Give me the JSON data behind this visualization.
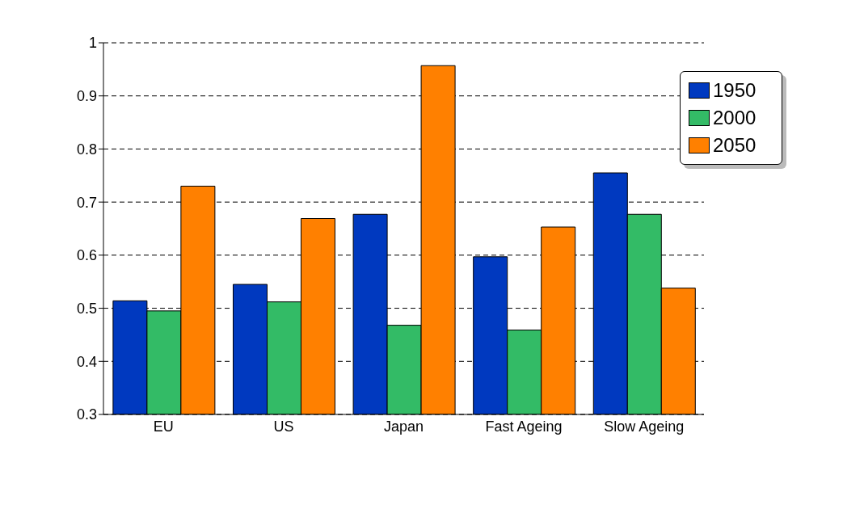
{
  "chart_data": {
    "type": "bar",
    "categories": [
      "EU",
      "US",
      "Japan",
      "Fast Ageing",
      "Slow Ageing"
    ],
    "series": [
      {
        "name": "1950",
        "color": "#0039bf",
        "values": [
          0.514,
          0.545,
          0.677,
          0.597,
          0.755
        ]
      },
      {
        "name": "2000",
        "color": "#33bb66",
        "values": [
          0.495,
          0.512,
          0.468,
          0.459,
          0.677
        ]
      },
      {
        "name": "2050",
        "color": "#ff8000",
        "values": [
          0.73,
          0.669,
          0.957,
          0.653,
          0.538
        ]
      }
    ],
    "ylim": [
      0.3,
      1
    ],
    "yticks": [
      0.3,
      0.4,
      0.5,
      0.6,
      0.7,
      0.8,
      0.9,
      1
    ],
    "grid": "y",
    "legend": "top right"
  }
}
